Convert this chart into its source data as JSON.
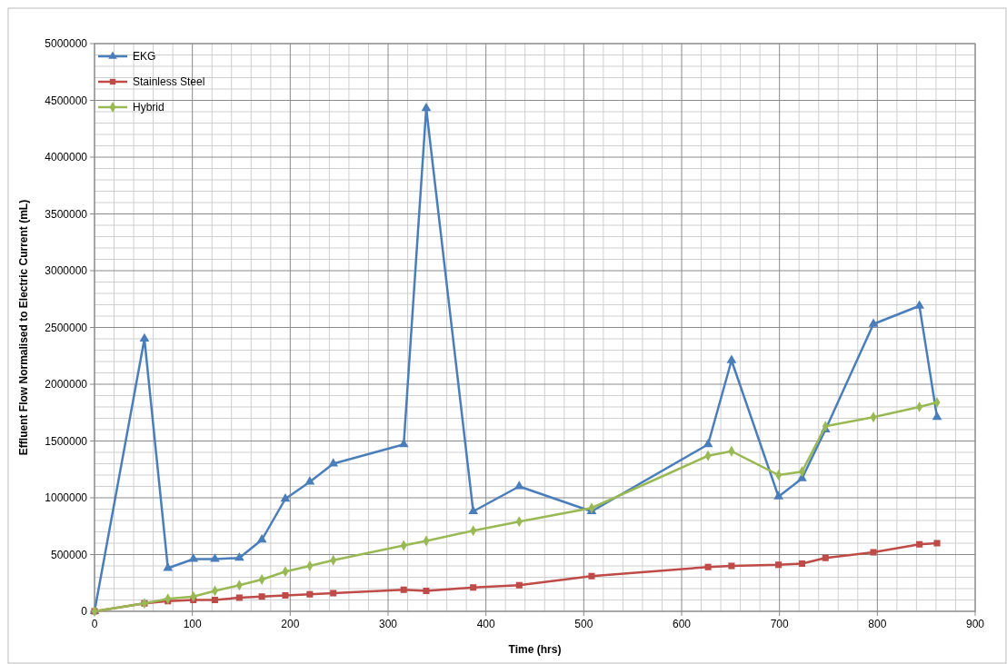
{
  "chart_data": {
    "type": "line",
    "xlabel": "Time (hrs)",
    "ylabel": "Effluent Flow  Normalised to Electric Current (mL)",
    "x": [
      0,
      51,
      75,
      101,
      123,
      148,
      171,
      195,
      220,
      244,
      316,
      339,
      387,
      434,
      508,
      627,
      651,
      699,
      723,
      747,
      796,
      843,
      861
    ],
    "xlim": [
      0,
      900
    ],
    "xticks": [
      0,
      100,
      200,
      300,
      400,
      500,
      600,
      700,
      800,
      900
    ],
    "ylim": [
      0,
      5000000
    ],
    "yticks": [
      0,
      500000,
      1000000,
      1500000,
      2000000,
      2500000,
      3000000,
      3500000,
      4000000,
      4500000,
      5000000
    ],
    "grid": true,
    "legend": "top left",
    "series": [
      {
        "name": "EKG",
        "color": "#4a7ebb",
        "marker": "triangle",
        "values": [
          0,
          2400000,
          380000,
          460000,
          460000,
          470000,
          630000,
          990000,
          1140000,
          1300000,
          1470000,
          4430000,
          880000,
          1100000,
          880000,
          1470000,
          2210000,
          1010000,
          1170000,
          1600000,
          2530000,
          2690000,
          1710000
        ]
      },
      {
        "name": "Stainless Steel",
        "color": "#be4b48",
        "marker": "square",
        "values": [
          0,
          70000,
          90000,
          100000,
          100000,
          120000,
          130000,
          140000,
          150000,
          160000,
          190000,
          180000,
          210000,
          230000,
          310000,
          390000,
          400000,
          410000,
          420000,
          470000,
          520000,
          590000,
          600000
        ]
      },
      {
        "name": "Hybrid",
        "color": "#98b954",
        "marker": "diamond",
        "values": [
          0,
          70000,
          110000,
          130000,
          180000,
          230000,
          280000,
          350000,
          400000,
          450000,
          580000,
          620000,
          710000,
          790000,
          910000,
          1370000,
          1410000,
          1200000,
          1230000,
          1630000,
          1710000,
          1800000,
          1840000
        ]
      }
    ]
  }
}
